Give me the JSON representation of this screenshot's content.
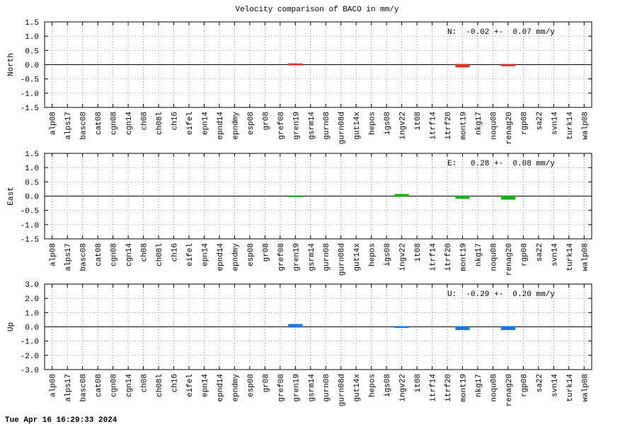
{
  "title": "Velocity comparison of BACO in mm/y",
  "timestamp": "Tue Apr 16 16:29:33 2024",
  "chart_data": [
    {
      "type": "bar",
      "ylabel": "North",
      "annotation": "N:  -0.02 +-  0.07 mm/y",
      "color": "#e0302a",
      "grid": true,
      "categories": [
        "alp08",
        "alps17",
        "basc08",
        "cat08",
        "cgn08",
        "cgn14",
        "ch08",
        "ch08l",
        "ch16",
        "eifel",
        "epn14",
        "epnd14",
        "epndmy",
        "esp08",
        "gr08",
        "gref08",
        "gren19",
        "gsrm14",
        "gurn08",
        "gurn08d",
        "gut14x",
        "hepos",
        "igs08",
        "ingv22",
        "it08",
        "itrf14",
        "itrf20",
        "mont19",
        "nkg17",
        "noqu08",
        "renag20",
        "rgp08",
        "sa22",
        "svn14",
        "turk14",
        "walp08"
      ],
      "values": [
        null,
        null,
        null,
        null,
        null,
        null,
        null,
        null,
        null,
        null,
        null,
        null,
        null,
        null,
        null,
        null,
        0.02,
        null,
        null,
        null,
        null,
        null,
        null,
        null,
        null,
        null,
        null,
        -0.07,
        null,
        null,
        -0.03,
        null,
        null,
        null,
        null,
        null
      ],
      "ylim": [
        -1.5,
        1.5
      ],
      "yticks": [
        1.5,
        {
          "value": 1,
          "label": "1.0"
        },
        0.5,
        {
          "value": 0,
          "label": "0.0"
        },
        -0.5,
        {
          "value": -1,
          "label": "-1.0"
        },
        -1.5
      ]
    },
    {
      "type": "bar",
      "ylabel": "East",
      "annotation": "E:   0.28 +-  0.08 mm/y",
      "color": "#1faa1f",
      "grid": true,
      "categories": [
        "alp08",
        "alps17",
        "basc08",
        "cat08",
        "cgn08",
        "cgn14",
        "ch08",
        "ch08l",
        "ch16",
        "eifel",
        "epn14",
        "epnd14",
        "epndmy",
        "esp08",
        "gr08",
        "gref08",
        "gren19",
        "gsrm14",
        "gurn08",
        "gurn08d",
        "gut14x",
        "hepos",
        "igs08",
        "ingv22",
        "it08",
        "itrf14",
        "itrf20",
        "mont19",
        "nkg17",
        "noqu08",
        "renag20",
        "rgp08",
        "sa22",
        "svn14",
        "turk14",
        "walp08"
      ],
      "values": [
        null,
        null,
        null,
        null,
        null,
        null,
        null,
        null,
        null,
        null,
        null,
        null,
        null,
        null,
        null,
        null,
        -0.01,
        null,
        null,
        null,
        null,
        null,
        null,
        0.05,
        null,
        null,
        null,
        -0.07,
        null,
        null,
        -0.1,
        null,
        null,
        null,
        null,
        null
      ],
      "ylim": [
        -1.5,
        1.5
      ],
      "yticks": [
        1.5,
        {
          "value": 1,
          "label": "1.0"
        },
        0.5,
        {
          "value": 0,
          "label": "0.0"
        },
        -0.5,
        {
          "value": -1,
          "label": "-1.0"
        },
        -1.5
      ]
    },
    {
      "type": "bar",
      "ylabel": "Up",
      "annotation": "U:  -0.29 +-  0.20 mm/y",
      "color": "#1a78d6",
      "grid": true,
      "categories": [
        "alp08",
        "alps17",
        "basc08",
        "cat08",
        "cgn08",
        "cgn14",
        "ch08",
        "ch08l",
        "ch16",
        "eifel",
        "epn14",
        "epnd14",
        "epndmy",
        "esp08",
        "gr08",
        "gref08",
        "gren19",
        "gsrm14",
        "gurn08",
        "gurn08d",
        "gut14x",
        "hepos",
        "igs08",
        "ingv22",
        "it08",
        "itrf14",
        "itrf20",
        "mont19",
        "nkg17",
        "noqu08",
        "renag20",
        "rgp08",
        "sa22",
        "svn14",
        "turk14",
        "walp08"
      ],
      "values": [
        null,
        null,
        null,
        null,
        null,
        null,
        null,
        null,
        null,
        null,
        null,
        null,
        null,
        null,
        null,
        null,
        0.15,
        null,
        null,
        null,
        null,
        null,
        null,
        -0.03,
        null,
        null,
        null,
        -0.18,
        null,
        null,
        -0.18,
        null,
        null,
        null,
        null,
        null
      ],
      "ylim": [
        -3,
        3
      ],
      "yticks": [
        {
          "value": 3,
          "label": "3.0"
        },
        {
          "value": 2,
          "label": "2.0"
        },
        {
          "value": 1,
          "label": "1.0"
        },
        {
          "value": 0,
          "label": "0.0"
        },
        {
          "value": -1,
          "label": "-1.0"
        },
        {
          "value": -2,
          "label": "-2.0"
        },
        {
          "value": -3,
          "label": "-3.0"
        }
      ]
    }
  ]
}
